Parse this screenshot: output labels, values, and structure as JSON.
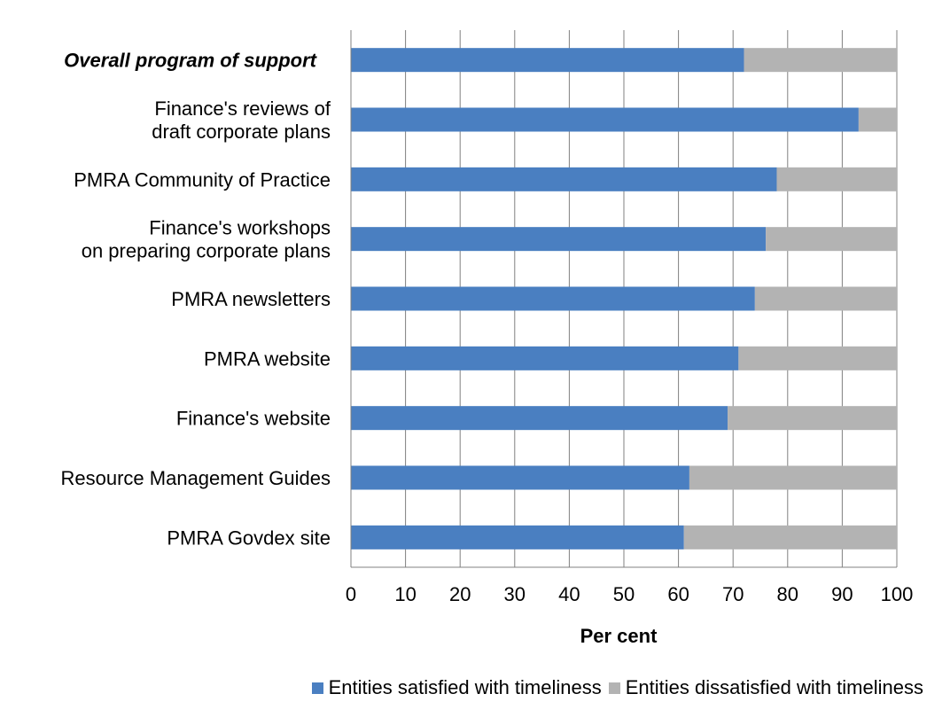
{
  "chart_data": {
    "type": "bar",
    "orientation": "horizontal",
    "stacked": true,
    "title": "",
    "xlabel": "Per cent",
    "ylabel": "",
    "xlim": [
      0,
      100
    ],
    "x_ticks": [
      "0",
      "10",
      "20",
      "30",
      "40",
      "50",
      "60",
      "70",
      "80",
      "90",
      "100"
    ],
    "grid": true,
    "legend_position": "bottom",
    "categories": [
      {
        "lines": [
          "Overall program of support"
        ],
        "emphasis": true
      },
      {
        "lines": [
          "Finance's reviews of",
          "draft corporate plans"
        ],
        "emphasis": false
      },
      {
        "lines": [
          "PMRA Community of Practice"
        ],
        "emphasis": false
      },
      {
        "lines": [
          "Finance's workshops",
          "on preparing corporate plans"
        ],
        "emphasis": false
      },
      {
        "lines": [
          "PMRA newsletters"
        ],
        "emphasis": false
      },
      {
        "lines": [
          "PMRA website"
        ],
        "emphasis": false
      },
      {
        "lines": [
          "Finance's website"
        ],
        "emphasis": false
      },
      {
        "lines": [
          "Resource Management Guides"
        ],
        "emphasis": false
      },
      {
        "lines": [
          "PMRA Govdex site"
        ],
        "emphasis": false
      }
    ],
    "series": [
      {
        "name": "Entities satisfied with timeliness",
        "color": "#4a7fc1",
        "values": [
          72,
          93,
          78,
          76,
          74,
          71,
          69,
          62,
          61
        ]
      },
      {
        "name": "Entities dissatisfied with timeliness",
        "color": "#b3b3b3",
        "values": [
          28,
          7,
          22,
          24,
          26,
          29,
          31,
          38,
          39
        ]
      }
    ]
  }
}
